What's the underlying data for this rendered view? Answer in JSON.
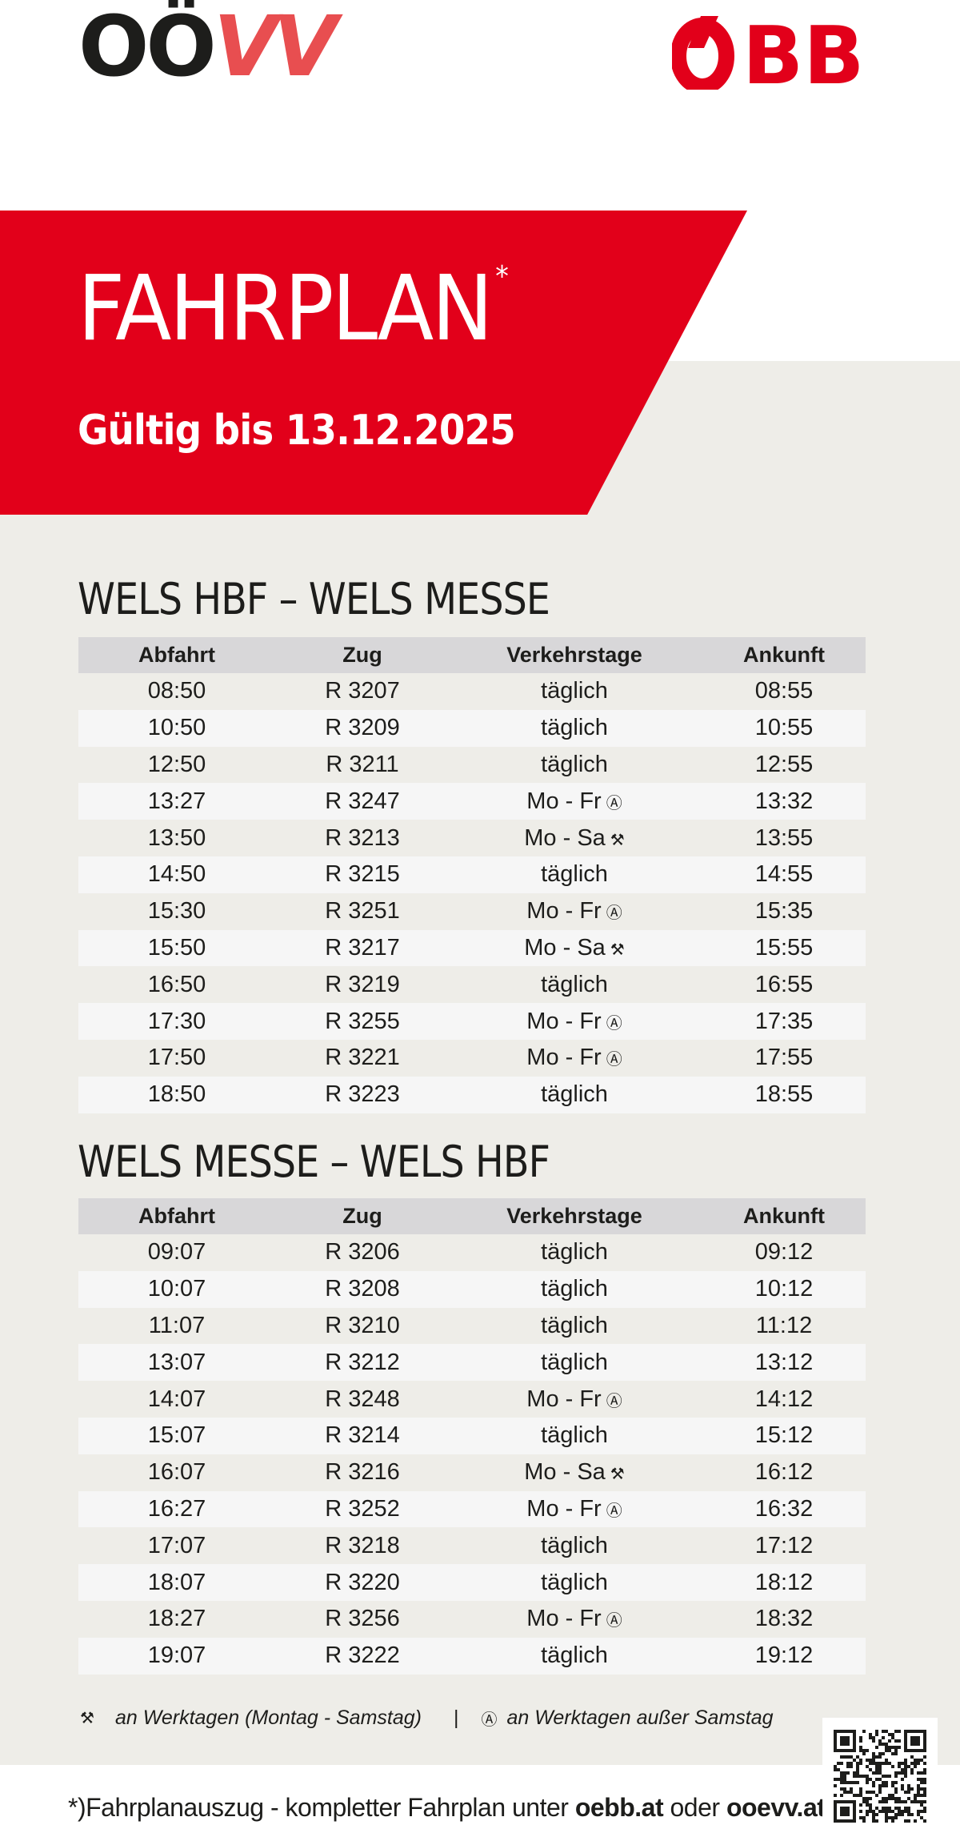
{
  "header": {
    "logo_left_dark": "OÖ",
    "logo_left_red": "VV",
    "logo_right": "ÖBB",
    "title": "FAHRPLAN",
    "title_mark": "*",
    "valid_until": "Gültig bis 13.12.2025"
  },
  "colors": {
    "brand_red": "#e2001a",
    "oovv_red": "#e84e50",
    "background_grey": "#eeede8",
    "header_grey": "#d8d7d9"
  },
  "columns": [
    "Abfahrt",
    "Zug",
    "Verkehrstage",
    "Ankunft"
  ],
  "timetables": [
    {
      "title": "WELS HBF – WELS MESSE",
      "rows": [
        {
          "dep": "08:50",
          "train": "R 3207",
          "days": "täglich",
          "sym": "",
          "arr": "08:55"
        },
        {
          "dep": "10:50",
          "train": "R 3209",
          "days": "täglich",
          "sym": "",
          "arr": "10:55"
        },
        {
          "dep": "12:50",
          "train": "R 3211",
          "days": "täglich",
          "sym": "",
          "arr": "12:55"
        },
        {
          "dep": "13:27",
          "train": "R 3247",
          "days": "Mo - Fr",
          "sym": "Ⓐ",
          "arr": "13:32"
        },
        {
          "dep": "13:50",
          "train": "R 3213",
          "days": "Mo - Sa",
          "sym": "⚒",
          "arr": "13:55"
        },
        {
          "dep": "14:50",
          "train": "R 3215",
          "days": "täglich",
          "sym": "",
          "arr": "14:55"
        },
        {
          "dep": "15:30",
          "train": "R 3251",
          "days": "Mo - Fr",
          "sym": "Ⓐ",
          "arr": "15:35"
        },
        {
          "dep": "15:50",
          "train": "R 3217",
          "days": "Mo - Sa",
          "sym": "⚒",
          "arr": "15:55"
        },
        {
          "dep": "16:50",
          "train": "R 3219",
          "days": "täglich",
          "sym": "",
          "arr": "16:55"
        },
        {
          "dep": "17:30",
          "train": "R 3255",
          "days": "Mo - Fr",
          "sym": "Ⓐ",
          "arr": "17:35"
        },
        {
          "dep": "17:50",
          "train": "R 3221",
          "days": "Mo - Fr",
          "sym": "Ⓐ",
          "arr": "17:55"
        },
        {
          "dep": "18:50",
          "train": "R 3223",
          "days": "täglich",
          "sym": "",
          "arr": "18:55"
        }
      ]
    },
    {
      "title": "WELS MESSE – WELS HBF",
      "rows": [
        {
          "dep": "09:07",
          "train": "R 3206",
          "days": "täglich",
          "sym": "",
          "arr": "09:12"
        },
        {
          "dep": "10:07",
          "train": "R 3208",
          "days": "täglich",
          "sym": "",
          "arr": "10:12"
        },
        {
          "dep": "11:07",
          "train": "R 3210",
          "days": "täglich",
          "sym": "",
          "arr": "11:12"
        },
        {
          "dep": "13:07",
          "train": "R 3212",
          "days": "täglich",
          "sym": "",
          "arr": "13:12"
        },
        {
          "dep": "14:07",
          "train": "R 3248",
          "days": "Mo - Fr",
          "sym": "Ⓐ",
          "arr": "14:12"
        },
        {
          "dep": "15:07",
          "train": "R 3214",
          "days": "täglich",
          "sym": "",
          "arr": "15:12"
        },
        {
          "dep": "16:07",
          "train": "R 3216",
          "days": "Mo - Sa",
          "sym": "⚒",
          "arr": "16:12"
        },
        {
          "dep": "16:27",
          "train": "R 3252",
          "days": "Mo - Fr",
          "sym": "Ⓐ",
          "arr": "16:32"
        },
        {
          "dep": "17:07",
          "train": "R 3218",
          "days": "täglich",
          "sym": "",
          "arr": "17:12"
        },
        {
          "dep": "18:07",
          "train": "R 3220",
          "days": "täglich",
          "sym": "",
          "arr": "18:12"
        },
        {
          "dep": "18:27",
          "train": "R 3256",
          "days": "Mo - Fr",
          "sym": "Ⓐ",
          "arr": "18:32"
        },
        {
          "dep": "19:07",
          "train": "R 3222",
          "days": "täglich",
          "sym": "",
          "arr": "19:12"
        }
      ]
    }
  ],
  "legend": {
    "workdays_symbol": "⚒",
    "workdays_text": "an Werktagen (Montag - Samstag)",
    "separator": "|",
    "weekdays_symbol": "Ⓐ",
    "weekdays_text": "an Werktagen außer Samstag"
  },
  "footnote": {
    "prefix": "*)Fahrplanauszug - kompletter Fahrplan unter ",
    "link1": "oebb.at",
    "middle": " oder ",
    "link2": "ooevv.at"
  },
  "qr_code": {
    "label": "qr-code"
  }
}
